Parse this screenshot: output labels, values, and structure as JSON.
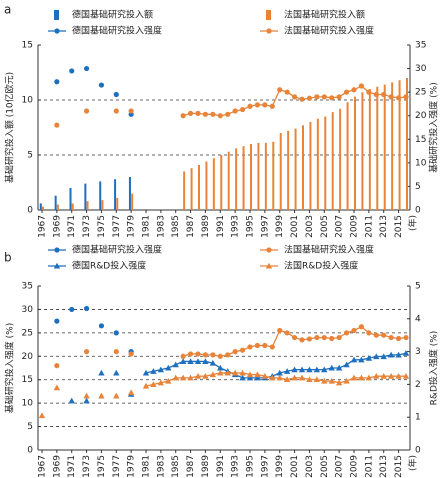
{
  "chart_data": [
    {
      "type": "bar_line",
      "panel": "a",
      "xlabel": "(年)",
      "ylabel": "基础研究投入额 (10亿欧元)",
      "y2label": "基础研究投入强度 (%)",
      "x": [
        1967,
        1968,
        1969,
        1970,
        1971,
        1972,
        1973,
        1974,
        1975,
        1976,
        1977,
        1978,
        1979,
        1980,
        1981,
        1982,
        1983,
        1984,
        1985,
        1986,
        1987,
        1988,
        1989,
        1990,
        1991,
        1992,
        1993,
        1994,
        1995,
        1996,
        1997,
        1998,
        1999,
        2000,
        2001,
        2002,
        2003,
        2004,
        2005,
        2006,
        2007,
        2008,
        2009,
        2010,
        2011,
        2012,
        2013,
        2014,
        2015,
        2016
      ],
      "xlim": [
        1967,
        2016
      ],
      "xticks": [
        1967,
        1969,
        1971,
        1973,
        1975,
        1977,
        1979,
        1981,
        1983,
        1985,
        1987,
        1989,
        1991,
        1993,
        1995,
        1997,
        1999,
        2001,
        2003,
        2005,
        2007,
        2009,
        2011,
        2013,
        2015
      ],
      "ylim": [
        0,
        15
      ],
      "yticks": [
        0,
        5,
        10,
        15
      ],
      "y2lim": [
        0,
        35
      ],
      "y2ticks": [
        0,
        5,
        10,
        15,
        20,
        25,
        30,
        35
      ],
      "grid": true,
      "series": [
        {
          "name": "德国基础研究投入额",
          "kind": "bar",
          "color": "#1f6fbf",
          "values": [
            0.6,
            null,
            1.3,
            null,
            2.0,
            null,
            2.4,
            null,
            2.6,
            null,
            2.8,
            null,
            3.0,
            null,
            null,
            null,
            null,
            null,
            null,
            null,
            null,
            null,
            null,
            null,
            null,
            null,
            null,
            null,
            null,
            null,
            null,
            null,
            null,
            null,
            null,
            null,
            null,
            null,
            null,
            null,
            null,
            null,
            null,
            null,
            null,
            null,
            null,
            null,
            null,
            null
          ]
        },
        {
          "name": "法国基础研究投入额",
          "kind": "bar",
          "color": "#e8843a",
          "values": [
            0.3,
            null,
            0.5,
            null,
            0.6,
            null,
            0.8,
            null,
            0.9,
            null,
            1.1,
            null,
            1.5,
            null,
            null,
            null,
            null,
            null,
            null,
            3.5,
            3.8,
            4.1,
            4.4,
            4.7,
            5.0,
            5.3,
            5.6,
            5.8,
            6.0,
            6.1,
            6.1,
            6.2,
            7.0,
            7.2,
            7.4,
            7.7,
            8.0,
            8.3,
            8.5,
            8.9,
            9.2,
            9.8,
            10.3,
            10.7,
            11.0,
            11.2,
            11.4,
            11.6,
            11.8,
            12.0
          ]
        },
        {
          "name": "德国基础研究投入强度",
          "kind": "line",
          "marker": "circle",
          "axis": "y2",
          "color": "#1f6fbf",
          "values": [
            null,
            null,
            27.2,
            null,
            29.5,
            null,
            30,
            null,
            26.5,
            null,
            24.5,
            null,
            20.3,
            null,
            null,
            null,
            null,
            null,
            null,
            null,
            null,
            null,
            null,
            null,
            null,
            null,
            null,
            null,
            null,
            null,
            null,
            null,
            null,
            null,
            null,
            null,
            null,
            null,
            null,
            null,
            null,
            null,
            null,
            null,
            null,
            null,
            null,
            null,
            null,
            null
          ]
        },
        {
          "name": "法国基础研究投入强度",
          "kind": "line",
          "marker": "circle",
          "axis": "y2",
          "color": "#e8843a",
          "values": [
            null,
            null,
            18,
            null,
            null,
            null,
            21,
            null,
            null,
            null,
            21,
            null,
            21,
            null,
            null,
            null,
            null,
            null,
            null,
            20,
            20.5,
            20.5,
            20.3,
            20.3,
            20,
            20.3,
            21,
            21.3,
            22,
            22.3,
            22.3,
            22,
            25.5,
            25,
            24,
            23.5,
            23.7,
            24,
            24,
            23.8,
            24,
            25,
            25.5,
            26.3,
            25,
            24.5,
            24.5,
            24,
            23.8,
            24
          ]
        }
      ]
    },
    {
      "type": "bar_line",
      "panel": "b",
      "xlabel": "(年)",
      "ylabel": "基础研究投入强度 (%)",
      "y2label": "R&D投入强度 (%)",
      "x": [
        1967,
        1968,
        1969,
        1970,
        1971,
        1972,
        1973,
        1974,
        1975,
        1976,
        1977,
        1978,
        1979,
        1980,
        1981,
        1982,
        1983,
        1984,
        1985,
        1986,
        1987,
        1988,
        1989,
        1990,
        1991,
        1992,
        1993,
        1994,
        1995,
        1996,
        1997,
        1998,
        1999,
        2000,
        2001,
        2002,
        2003,
        2004,
        2005,
        2006,
        2007,
        2008,
        2009,
        2010,
        2011,
        2012,
        2013,
        2014,
        2015,
        2016
      ],
      "xlim": [
        1967,
        2016
      ],
      "xticks": [
        1967,
        1969,
        1971,
        1973,
        1975,
        1977,
        1979,
        1981,
        1983,
        1985,
        1987,
        1989,
        1991,
        1993,
        1995,
        1997,
        1999,
        2001,
        2003,
        2005,
        2007,
        2009,
        2011,
        2013,
        2015
      ],
      "ylim": [
        0,
        35
      ],
      "yticks": [
        0,
        5,
        10,
        15,
        20,
        25,
        30,
        35
      ],
      "y2lim": [
        0,
        5
      ],
      "y2ticks": [
        0,
        1,
        2,
        3,
        4,
        5
      ],
      "grid": true,
      "series": [
        {
          "name": "德国基础研究投入强度",
          "kind": "line",
          "marker": "circle",
          "color": "#1f6fbf",
          "values": [
            null,
            null,
            27.5,
            null,
            30,
            null,
            30.2,
            null,
            26.5,
            null,
            25,
            null,
            21,
            null,
            null,
            null,
            null,
            null,
            null,
            null,
            null,
            null,
            null,
            null,
            null,
            null,
            null,
            null,
            null,
            null,
            null,
            null,
            null,
            null,
            null,
            null,
            null,
            null,
            null,
            null,
            null,
            null,
            null,
            null,
            null,
            null,
            null,
            null,
            null,
            null
          ]
        },
        {
          "name": "法国基础研究投入强度",
          "kind": "line",
          "marker": "circle",
          "color": "#e8843a",
          "values": [
            null,
            null,
            18,
            null,
            null,
            null,
            21,
            null,
            null,
            null,
            21,
            null,
            20.5,
            null,
            null,
            null,
            null,
            null,
            null,
            20,
            20.5,
            20.5,
            20.3,
            20.3,
            20,
            20.3,
            21,
            21.3,
            22,
            22.3,
            22.3,
            22,
            25.5,
            25,
            24,
            23.5,
            23.7,
            24,
            24,
            23.8,
            24,
            25,
            25.5,
            26.3,
            25,
            24.5,
            24.5,
            24,
            23.8,
            24
          ]
        },
        {
          "name": "德国R&D投入强度",
          "kind": "line",
          "marker": "triangle",
          "axis": "y2",
          "color": "#1f6fbf",
          "values": [
            null,
            null,
            null,
            null,
            1.5,
            null,
            1.5,
            null,
            2.35,
            null,
            2.35,
            null,
            1.7,
            null,
            2.35,
            2.4,
            2.45,
            2.5,
            2.6,
            2.7,
            2.7,
            2.7,
            2.7,
            2.65,
            2.5,
            2.4,
            2.3,
            2.2,
            2.2,
            2.2,
            2.2,
            2.25,
            2.35,
            2.4,
            2.45,
            2.45,
            2.45,
            2.45,
            2.45,
            2.5,
            2.5,
            2.6,
            2.75,
            2.75,
            2.8,
            2.85,
            2.85,
            2.9,
            2.9,
            2.95
          ]
        },
        {
          "name": "法国R&D投入强度",
          "kind": "line",
          "marker": "triangle",
          "axis": "y2",
          "color": "#e8843a",
          "values": [
            1.05,
            null,
            1.9,
            null,
            null,
            null,
            1.65,
            null,
            1.65,
            null,
            1.65,
            null,
            1.75,
            null,
            1.95,
            2.0,
            2.05,
            2.1,
            2.2,
            2.2,
            2.2,
            2.25,
            2.25,
            2.3,
            2.35,
            2.35,
            2.35,
            2.35,
            2.3,
            2.3,
            2.25,
            2.2,
            2.2,
            2.15,
            2.2,
            2.2,
            2.15,
            2.15,
            2.1,
            2.1,
            2.05,
            2.1,
            2.2,
            2.2,
            2.2,
            2.25,
            2.25,
            2.25,
            2.25,
            2.25
          ]
        }
      ]
    }
  ]
}
